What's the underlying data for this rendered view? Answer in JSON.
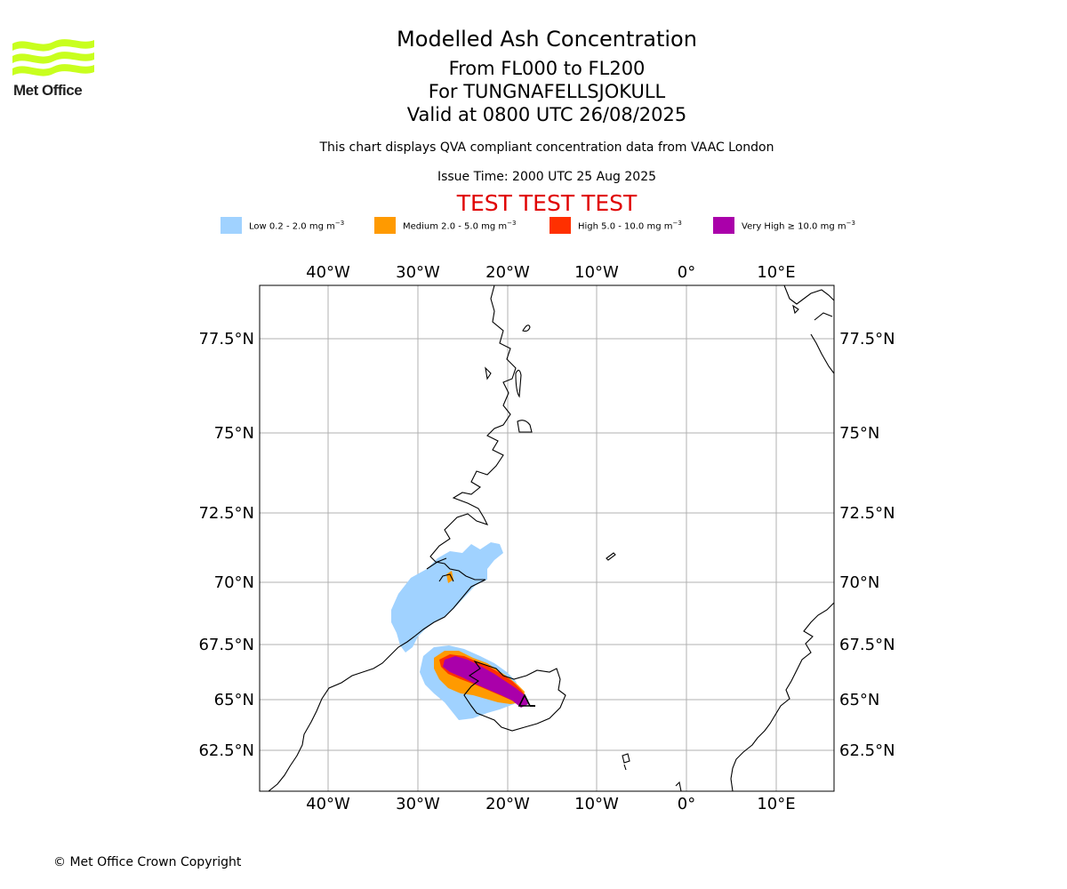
{
  "branding": {
    "logo_text": "Met Office",
    "copyright": "© Met Office Crown Copyright"
  },
  "header": {
    "title": "Modelled Ash Concentration",
    "level_range": "From FL000 to FL200",
    "volcano": "For TUNGNAFELLSJOKULL",
    "valid_time": "Valid at 0800 UTC 26/08/2025",
    "description": "This chart displays QVA compliant concentration data from VAAC London",
    "issue_time": "Issue Time: 2000 UTC 25 Aug 2025",
    "test_banner": "TEST TEST TEST"
  },
  "legend": [
    {
      "label": "Low 0.2 - 2.0 mg m",
      "unit_exp": "−3",
      "color": "#a0d2ff"
    },
    {
      "label": "Medium 2.0 - 5.0 mg m",
      "unit_exp": "−3",
      "color": "#ff9a00"
    },
    {
      "label": "High 5.0 - 10.0 mg m",
      "unit_exp": "−3",
      "color": "#ff3000"
    },
    {
      "label": "Very High ≥ 10.0 mg m",
      "unit_exp": "−3",
      "color": "#aa00aa"
    }
  ],
  "map": {
    "extent": {
      "lon": [
        -47.5,
        16.5
      ],
      "lat": [
        61,
        79
      ]
    },
    "lon_ticks": [
      "40°W",
      "30°W",
      "20°W",
      "10°W",
      "0°",
      "10°E"
    ],
    "lat_ticks": [
      "77.5°N",
      "75°N",
      "72.5°N",
      "70°N",
      "67.5°N",
      "65°N",
      "62.5°N"
    ],
    "volcano_marker": "triangle"
  }
}
